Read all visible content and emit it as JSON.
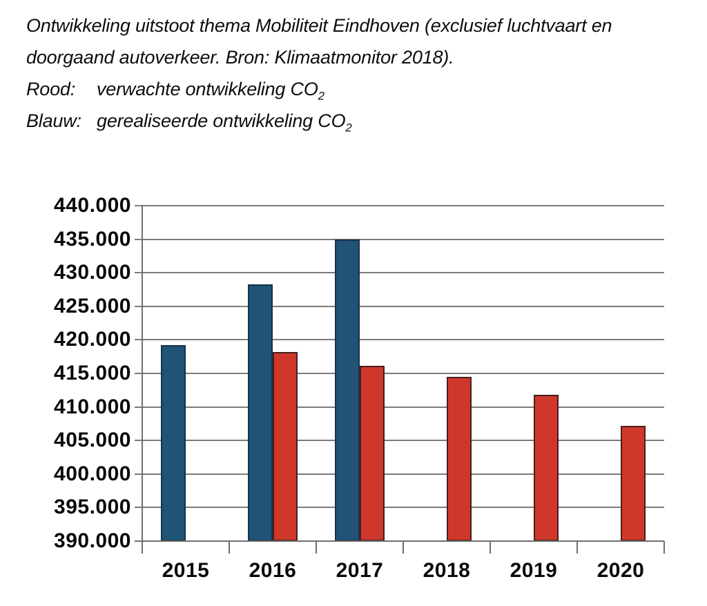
{
  "header": {
    "title_line1": "Ontwikkeling uitstoot thema Mobiliteit Eindhoven (exclusief luchtvaart en",
    "title_line2": "doorgaand autoverkeer. Bron: Klimaatmonitor 2018).",
    "legend_items": [
      {
        "term": "Rood:",
        "desc": "verwachte ontwikkeling CO",
        "sub": "2"
      },
      {
        "term": "Blauw:",
        "desc": "gerealiseerde ontwikkeling CO",
        "sub": "2"
      }
    ]
  },
  "chart_data": {
    "type": "bar",
    "categories": [
      "2015",
      "2016",
      "2017",
      "2018",
      "2019",
      "2020"
    ],
    "series": [
      {
        "name": "gerealiseerde ontwikkeling CO2 (blauw)",
        "color": "#215377",
        "border_color": "#16334a",
        "values": [
          419200,
          428300,
          435000,
          null,
          null,
          null
        ]
      },
      {
        "name": "verwachte ontwikkeling CO2 (rood)",
        "color": "#d0372b",
        "border_color": "#451f19",
        "values": [
          null,
          418200,
          416100,
          414500,
          411800,
          407200
        ]
      }
    ],
    "ylim": [
      390000,
      440000
    ],
    "ytick_step": 5000,
    "yticks": [
      {
        "v": 390000,
        "label": "390.000"
      },
      {
        "v": 395000,
        "label": "395.000"
      },
      {
        "v": 400000,
        "label": "400.000"
      },
      {
        "v": 405000,
        "label": "405.000"
      },
      {
        "v": 410000,
        "label": "410.000"
      },
      {
        "v": 415000,
        "label": "415.000"
      },
      {
        "v": 420000,
        "label": "420.000"
      },
      {
        "v": 425000,
        "label": "425.000"
      },
      {
        "v": 430000,
        "label": "430.000"
      },
      {
        "v": 435000,
        "label": "435.000"
      },
      {
        "v": 440000,
        "label": "440.000"
      }
    ],
    "grid": true,
    "legend_position": "in caption text",
    "gridline_color": "#7b7b7b",
    "axis_color": "#6e6e6e",
    "text_color": "#0a0a0a",
    "background_color": "#ffffff"
  }
}
